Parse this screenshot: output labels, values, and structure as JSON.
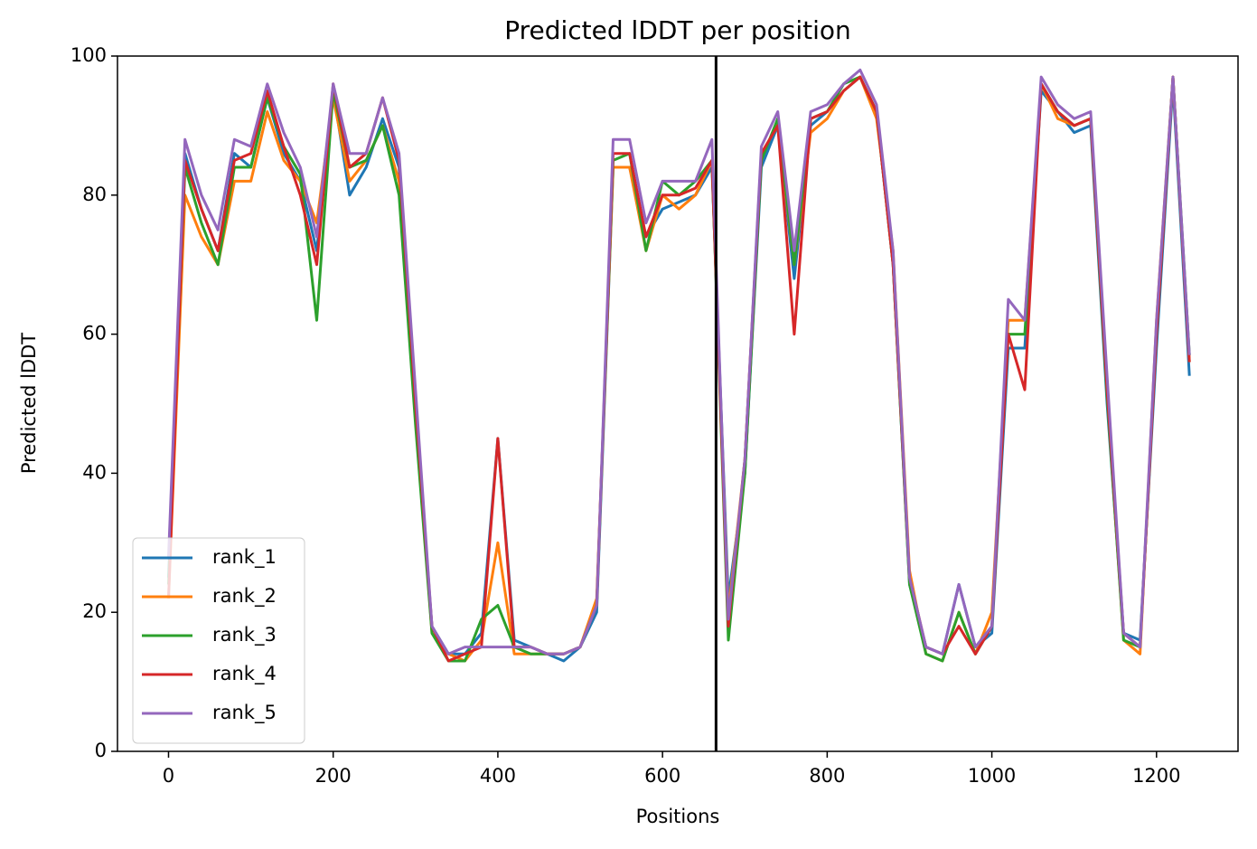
{
  "chart_data": {
    "type": "line",
    "title": "Predicted lDDT per position",
    "x_label": "Positions",
    "y_label": "Predicted lDDT",
    "x": [
      0,
      20,
      40,
      60,
      80,
      100,
      120,
      140,
      160,
      180,
      200,
      220,
      240,
      260,
      280,
      300,
      320,
      340,
      360,
      380,
      400,
      420,
      440,
      460,
      480,
      500,
      520,
      540,
      560,
      580,
      600,
      620,
      640,
      660,
      680,
      700,
      720,
      740,
      760,
      780,
      800,
      820,
      840,
      860,
      880,
      900,
      920,
      940,
      960,
      980,
      1000,
      1020,
      1040,
      1060,
      1080,
      1100,
      1120,
      1140,
      1160,
      1180,
      1200,
      1220,
      1240
    ],
    "series": [
      {
        "name": "rank_1",
        "color": "#1f77b4",
        "values": [
          25,
          86,
          78,
          72,
          86,
          84,
          94,
          86,
          82,
          72,
          95,
          80,
          84,
          91,
          84,
          48,
          18,
          14,
          14,
          17,
          45,
          16,
          15,
          14,
          13,
          15,
          20,
          84,
          84,
          74,
          78,
          79,
          80,
          84,
          22,
          40,
          84,
          90,
          68,
          90,
          92,
          95,
          97,
          92,
          70,
          24,
          15,
          14,
          24,
          15,
          17,
          58,
          58,
          95,
          92,
          89,
          90,
          50,
          17,
          16,
          58,
          96,
          54
        ]
      },
      {
        "name": "rank_2",
        "color": "#ff7f0e",
        "values": [
          22,
          80,
          74,
          70,
          82,
          82,
          92,
          85,
          82,
          76,
          94,
          82,
          85,
          90,
          82,
          50,
          17,
          14,
          13,
          16,
          30,
          14,
          14,
          14,
          14,
          15,
          22,
          84,
          84,
          72,
          80,
          78,
          80,
          85,
          20,
          42,
          86,
          90,
          70,
          89,
          91,
          95,
          97,
          91,
          72,
          26,
          14,
          13,
          20,
          14,
          20,
          62,
          62,
          96,
          91,
          90,
          91,
          52,
          16,
          14,
          62,
          97,
          56
        ]
      },
      {
        "name": "rank_3",
        "color": "#2ca02c",
        "values": [
          24,
          84,
          76,
          70,
          84,
          84,
          94,
          87,
          83,
          62,
          95,
          84,
          85,
          90,
          80,
          47,
          17,
          13,
          13,
          19,
          21,
          15,
          14,
          14,
          14,
          15,
          21,
          85,
          86,
          72,
          82,
          80,
          82,
          85,
          16,
          40,
          85,
          91,
          70,
          91,
          92,
          96,
          97,
          92,
          70,
          24,
          14,
          13,
          20,
          14,
          18,
          60,
          60,
          96,
          92,
          90,
          91,
          51,
          16,
          15,
          60,
          97,
          57
        ]
      },
      {
        "name": "rank_4",
        "color": "#d62728",
        "values": [
          22,
          85,
          78,
          72,
          85,
          86,
          95,
          87,
          80,
          70,
          96,
          84,
          86,
          94,
          85,
          50,
          18,
          13,
          14,
          15,
          45,
          15,
          15,
          14,
          14,
          15,
          21,
          86,
          86,
          74,
          80,
          80,
          81,
          85,
          18,
          42,
          86,
          90,
          60,
          91,
          92,
          95,
          97,
          92,
          70,
          25,
          15,
          14,
          18,
          14,
          18,
          60,
          52,
          96,
          92,
          90,
          91,
          52,
          17,
          15,
          60,
          97,
          56
        ]
      },
      {
        "name": "rank_5",
        "color": "#9467bd",
        "values": [
          28,
          88,
          80,
          75,
          88,
          87,
          96,
          89,
          84,
          74,
          96,
          86,
          86,
          94,
          86,
          52,
          18,
          14,
          15,
          15,
          15,
          15,
          15,
          14,
          14,
          15,
          21,
          88,
          88,
          76,
          82,
          82,
          82,
          88,
          19,
          42,
          87,
          92,
          72,
          92,
          93,
          96,
          98,
          93,
          72,
          25,
          15,
          14,
          24,
          15,
          18,
          65,
          62,
          97,
          93,
          91,
          92,
          54,
          17,
          15,
          62,
          97,
          57
        ]
      }
    ],
    "vline": 665,
    "xlim": [
      -62,
      1299
    ],
    "ylim": [
      0,
      100
    ],
    "xticks": [
      0,
      200,
      400,
      600,
      800,
      1000,
      1200
    ],
    "yticks": [
      0,
      20,
      40,
      60,
      80,
      100
    ],
    "legend": "lower left"
  }
}
